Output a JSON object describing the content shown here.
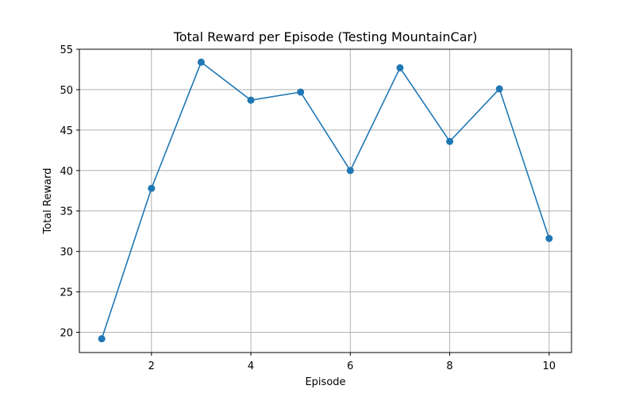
{
  "chart_data": {
    "type": "line",
    "title": "Total Reward per Episode (Testing MountainCar)",
    "xlabel": "Episode",
    "ylabel": "Total Reward",
    "x": [
      1,
      2,
      3,
      4,
      5,
      6,
      7,
      8,
      9,
      10
    ],
    "series": [
      {
        "values": [
          19.2,
          37.8,
          53.4,
          48.7,
          49.7,
          40.0,
          52.7,
          43.6,
          50.1,
          31.6
        ]
      }
    ],
    "xlim": [
      0.55,
      10.45
    ],
    "ylim": [
      17.5,
      55.0
    ],
    "xticks": [
      2,
      4,
      6,
      8,
      10
    ],
    "yticks": [
      20,
      25,
      30,
      35,
      40,
      45,
      50,
      55
    ],
    "grid": true,
    "marker": "circle",
    "line_color": "#1f77b4"
  }
}
